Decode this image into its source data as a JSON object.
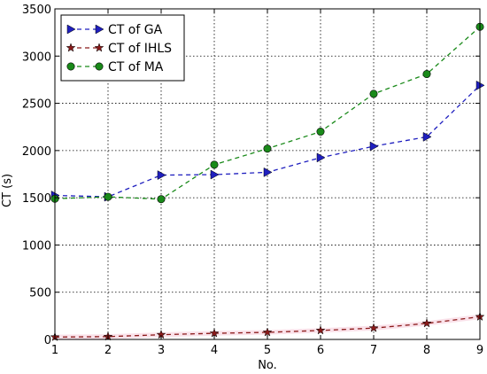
{
  "chart_data": {
    "type": "line",
    "title": "",
    "xlabel": "No.",
    "ylabel": "CT (s)",
    "xlim": [
      1,
      9
    ],
    "ylim": [
      0,
      3500
    ],
    "xticks": [
      "1",
      "2",
      "3",
      "4",
      "5",
      "6",
      "7",
      "8",
      "9"
    ],
    "yticks": [
      "0",
      "500",
      "1000",
      "1500",
      "2000",
      "2500",
      "3000",
      "3500"
    ],
    "grid": true,
    "legend_position": "top-left",
    "x": [
      1,
      2,
      3,
      4,
      5,
      6,
      7,
      8,
      9
    ],
    "series": [
      {
        "name": "CT of GA",
        "color": "#1f1fbf",
        "marker": "triangle-right",
        "values": [
          1525,
          1510,
          1740,
          1745,
          1770,
          1925,
          2045,
          2145,
          2690
        ]
      },
      {
        "name": "CT of IHLS",
        "color": "#8b1a1a",
        "marker": "star",
        "values": [
          25,
          30,
          50,
          65,
          75,
          95,
          120,
          170,
          240
        ]
      },
      {
        "name": "CT of MA",
        "color": "#1a8a1a",
        "marker": "circle",
        "values": [
          1490,
          1510,
          1485,
          1850,
          2020,
          2200,
          2600,
          2810,
          3310
        ]
      }
    ]
  }
}
